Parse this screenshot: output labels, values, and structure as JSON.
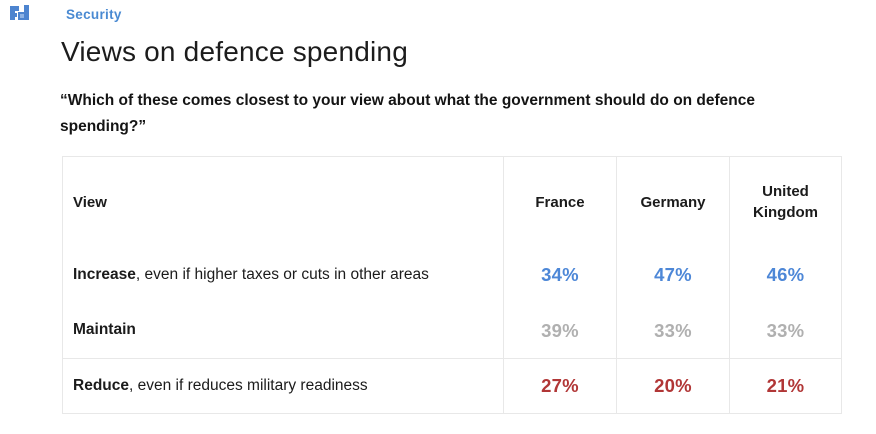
{
  "brand": {
    "logo_name": "focaldata-logo",
    "section_label": "Security",
    "accent_color": "#4a8ad2"
  },
  "page": {
    "title": "Views on defence spending",
    "question": "“Which of these comes closest to your view about what the government should do on defence spending?”"
  },
  "chart_data": {
    "type": "table",
    "title": "Views on defence spending",
    "subtitle": "“Which of these comes closest to your view about what the government should do on defence spending?”",
    "columns": [
      "View",
      "France",
      "Germany",
      "United Kingdom"
    ],
    "rows": [
      {
        "label_bold": "Increase",
        "label_rest": ", even if higher taxes or cuts in other areas",
        "values": [
          "34%",
          "47%",
          "46%"
        ],
        "color": "#4d87d7"
      },
      {
        "label_bold": "Maintain",
        "label_rest": "",
        "values": [
          "39%",
          "33%",
          "33%"
        ],
        "color": "#b0b0b0"
      },
      {
        "label_bold": "Reduce",
        "label_rest": ", even if reduces military readiness",
        "values": [
          "27%",
          "20%",
          "21%"
        ],
        "color": "#b13636"
      }
    ]
  }
}
